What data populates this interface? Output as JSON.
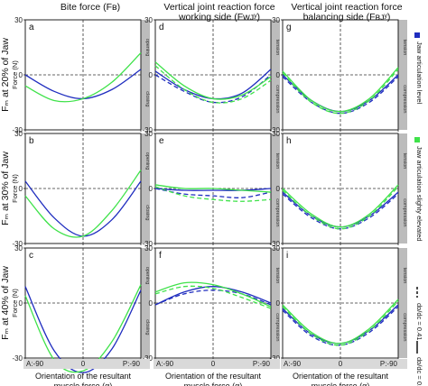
{
  "column_titles": [
    [
      "Bite force (Fʙ)"
    ],
    [
      "Vertical joint reaction force",
      "working side (Fᴡᴊʸ)"
    ],
    [
      "Vertical joint reaction force",
      "balancing side (Fʙᴊʸ)"
    ]
  ],
  "row_labels": [
    "Fₘ at 20% of Jaw",
    "Fₘ at 30% of Jaw",
    "Fₘ at 40% of Jaw"
  ],
  "y_axis_title": "Force (N)",
  "x_axis_title": [
    "Orientation of the resultant",
    "muscle force (α)"
  ],
  "x_tick_labels": [
    "A:-90",
    "0",
    "P:-90"
  ],
  "tab_labels": {
    "col1": [
      "opening",
      "closing"
    ],
    "other": [
      "tension",
      "compression"
    ]
  },
  "legend": {
    "blue_label": "Jaw articulation level",
    "green_label": "Jaw articulation slighty elevated",
    "dashed_label": "dᴅ/dᴄ = 0.41",
    "solid_label": "dᴅ/dᴄ = 0.68"
  },
  "colors": {
    "blue": "#1f2dbf",
    "green": "#3fe24a",
    "tab": "#bcbcbc"
  },
  "chart_data": [
    {
      "panel": "a",
      "type": "line",
      "x": [
        -90,
        0,
        90
      ],
      "ylim": [
        -30,
        30
      ],
      "series": [
        {
          "color": "blue",
          "style": "solid",
          "x": [
            -90,
            -45,
            0,
            45,
            90
          ],
          "y": [
            0,
            -9,
            -13,
            -8,
            3
          ]
        },
        {
          "color": "green",
          "style": "solid",
          "x": [
            -90,
            -45,
            0,
            45,
            90
          ],
          "y": [
            -6,
            -14,
            -13,
            -4,
            12
          ]
        }
      ]
    },
    {
      "panel": "b",
      "type": "line",
      "x": [
        -90,
        0,
        90
      ],
      "ylim": [
        -30,
        30
      ],
      "series": [
        {
          "color": "blue",
          "style": "solid",
          "x": [
            -90,
            -45,
            0,
            45,
            90
          ],
          "y": [
            4,
            -16,
            -26,
            -17,
            4
          ]
        },
        {
          "color": "green",
          "style": "solid",
          "x": [
            -90,
            -45,
            0,
            45,
            90
          ],
          "y": [
            -4,
            -22,
            -26,
            -12,
            10
          ]
        }
      ]
    },
    {
      "panel": "c",
      "type": "line",
      "x": [
        -90,
        0,
        90
      ],
      "ylim": [
        -30,
        30
      ],
      "series": [
        {
          "color": "blue",
          "style": "solid",
          "x": [
            -90,
            -45,
            0,
            45,
            90
          ],
          "y": [
            9,
            -26,
            -38,
            -25,
            7
          ]
        },
        {
          "color": "green",
          "style": "solid",
          "x": [
            -90,
            -45,
            0,
            45,
            90
          ],
          "y": [
            4,
            -31,
            -37,
            -21,
            10
          ]
        }
      ]
    },
    {
      "panel": "d",
      "type": "line",
      "x": [
        -90,
        0,
        90
      ],
      "ylim": [
        -30,
        30
      ],
      "series": [
        {
          "color": "blue",
          "style": "solid",
          "x": [
            -90,
            -45,
            0,
            45,
            90
          ],
          "y": [
            2,
            -8,
            -13,
            -10,
            3
          ]
        },
        {
          "color": "blue",
          "style": "dashed",
          "x": [
            -90,
            -45,
            0,
            45,
            90
          ],
          "y": [
            0,
            -9,
            -15,
            -12,
            0
          ]
        },
        {
          "color": "green",
          "style": "solid",
          "x": [
            -90,
            -45,
            0,
            45,
            90
          ],
          "y": [
            7,
            -6,
            -13,
            -11,
            -1
          ]
        },
        {
          "color": "green",
          "style": "dashed",
          "x": [
            -90,
            -45,
            0,
            45,
            90
          ],
          "y": [
            5,
            -8,
            -15,
            -13,
            -3
          ]
        }
      ]
    },
    {
      "panel": "e",
      "type": "line",
      "x": [
        -90,
        0,
        90
      ],
      "ylim": [
        -30,
        30
      ],
      "series": [
        {
          "color": "blue",
          "style": "solid",
          "x": [
            -90,
            -45,
            0,
            45,
            90
          ],
          "y": [
            0,
            -1,
            -1,
            -1,
            0
          ]
        },
        {
          "color": "blue",
          "style": "dashed",
          "x": [
            -90,
            -45,
            0,
            45,
            90
          ],
          "y": [
            0,
            -3,
            -4,
            -5,
            -2
          ]
        },
        {
          "color": "green",
          "style": "solid",
          "x": [
            -90,
            -45,
            0,
            45,
            90
          ],
          "y": [
            2,
            0,
            0,
            -1,
            -2
          ]
        },
        {
          "color": "green",
          "style": "dashed",
          "x": [
            -90,
            -45,
            0,
            45,
            90
          ],
          "y": [
            1,
            -4,
            -6,
            -7,
            -6
          ]
        }
      ]
    },
    {
      "panel": "f",
      "type": "line",
      "x": [
        -90,
        0,
        90
      ],
      "ylim": [
        -30,
        30
      ],
      "series": [
        {
          "color": "blue",
          "style": "solid",
          "x": [
            -90,
            -45,
            0,
            45,
            90
          ],
          "y": [
            -1,
            6,
            9,
            6,
            0
          ]
        },
        {
          "color": "blue",
          "style": "dashed",
          "x": [
            -90,
            -45,
            0,
            45,
            90
          ],
          "y": [
            -1,
            5,
            7,
            5,
            -1
          ]
        },
        {
          "color": "green",
          "style": "solid",
          "x": [
            -90,
            -45,
            0,
            45,
            90
          ],
          "y": [
            6,
            11,
            10,
            5,
            -2
          ]
        },
        {
          "color": "green",
          "style": "dashed",
          "x": [
            -90,
            -45,
            0,
            45,
            90
          ],
          "y": [
            5,
            9,
            8,
            3,
            -3
          ]
        }
      ]
    },
    {
      "panel": "g",
      "type": "line",
      "x": [
        -90,
        0,
        90
      ],
      "ylim": [
        -30,
        30
      ],
      "series": [
        {
          "color": "blue",
          "style": "solid",
          "x": [
            -90,
            -45,
            0,
            45,
            90
          ],
          "y": [
            0,
            -14,
            -20,
            -14,
            0
          ]
        },
        {
          "color": "blue",
          "style": "dashed",
          "x": [
            -90,
            -45,
            0,
            45,
            90
          ],
          "y": [
            -1,
            -15,
            -21,
            -15,
            -1
          ]
        },
        {
          "color": "green",
          "style": "solid",
          "x": [
            -90,
            -45,
            0,
            45,
            90
          ],
          "y": [
            2,
            -14,
            -20,
            -13,
            4
          ]
        },
        {
          "color": "green",
          "style": "dashed",
          "x": [
            -90,
            -45,
            0,
            45,
            90
          ],
          "y": [
            1,
            -15,
            -21,
            -14,
            3
          ]
        }
      ]
    },
    {
      "panel": "h",
      "type": "line",
      "x": [
        -90,
        0,
        90
      ],
      "ylim": [
        -30,
        30
      ],
      "series": [
        {
          "color": "blue",
          "style": "solid",
          "x": [
            -90,
            -45,
            0,
            45,
            90
          ],
          "y": [
            -2,
            -15,
            -21,
            -15,
            -2
          ]
        },
        {
          "color": "blue",
          "style": "dashed",
          "x": [
            -90,
            -45,
            0,
            45,
            90
          ],
          "y": [
            -3,
            -16,
            -22,
            -16,
            -3
          ]
        },
        {
          "color": "green",
          "style": "solid",
          "x": [
            -90,
            -45,
            0,
            45,
            90
          ],
          "y": [
            0,
            -14,
            -21,
            -14,
            2
          ]
        },
        {
          "color": "green",
          "style": "dashed",
          "x": [
            -90,
            -45,
            0,
            45,
            90
          ],
          "y": [
            -1,
            -15,
            -22,
            -15,
            1
          ]
        }
      ]
    },
    {
      "panel": "i",
      "type": "line",
      "x": [
        -90,
        0,
        90
      ],
      "ylim": [
        -30,
        30
      ],
      "series": [
        {
          "color": "blue",
          "style": "solid",
          "x": [
            -90,
            -45,
            0,
            45,
            90
          ],
          "y": [
            -3,
            -17,
            -22,
            -15,
            -1
          ]
        },
        {
          "color": "blue",
          "style": "dashed",
          "x": [
            -90,
            -45,
            0,
            45,
            90
          ],
          "y": [
            -4,
            -18,
            -23,
            -16,
            -2
          ]
        },
        {
          "color": "green",
          "style": "solid",
          "x": [
            -90,
            -45,
            0,
            45,
            90
          ],
          "y": [
            -1,
            -16,
            -22,
            -14,
            2
          ]
        },
        {
          "color": "green",
          "style": "dashed",
          "x": [
            -90,
            -45,
            0,
            45,
            90
          ],
          "y": [
            -2,
            -17,
            -23,
            -15,
            1
          ]
        }
      ]
    }
  ]
}
